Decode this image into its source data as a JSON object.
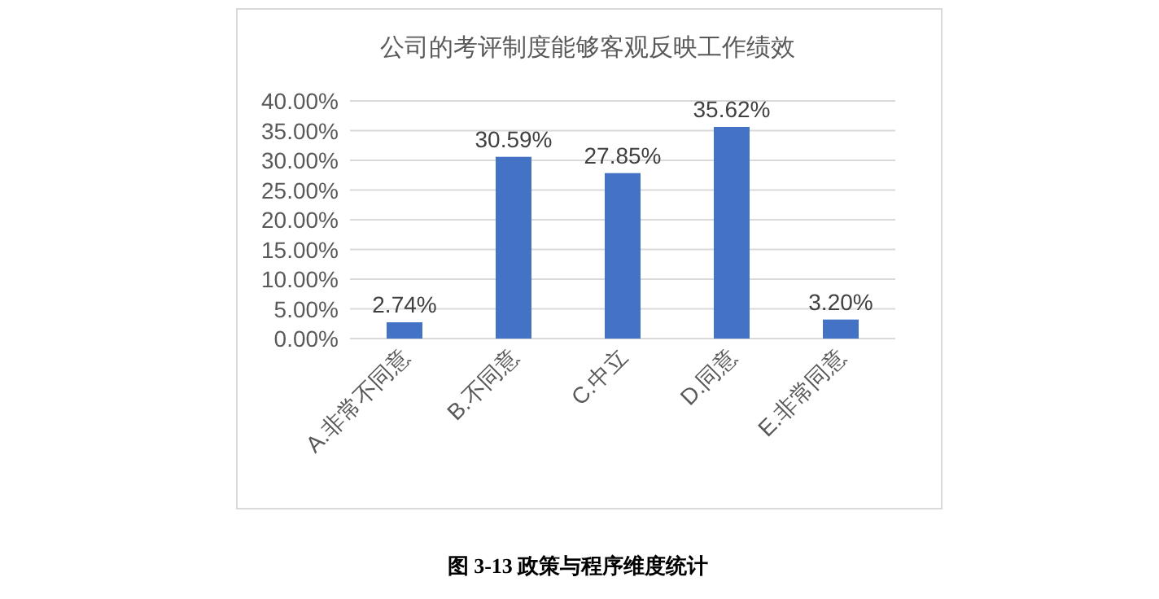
{
  "chart_data": {
    "type": "bar",
    "title": "公司的考评制度能够客观反映工作绩效",
    "categories": [
      "A.非常不同意",
      "B.不同意",
      "C.中立",
      "D.同意",
      "E.非常同意"
    ],
    "values": [
      2.74,
      30.59,
      27.85,
      35.62,
      3.2
    ],
    "value_labels": [
      "2.74%",
      "30.59%",
      "27.85%",
      "35.62%",
      "3.20%"
    ],
    "color": "#4472c4",
    "ylim": [
      0,
      40
    ],
    "yticks": [
      {
        "value": 0,
        "label": "0.00%"
      },
      {
        "value": 5,
        "label": "5.00%"
      },
      {
        "value": 10,
        "label": "10.00%"
      },
      {
        "value": 15,
        "label": "15.00%"
      },
      {
        "value": 20,
        "label": "20.00%"
      },
      {
        "value": 25,
        "label": "25.00%"
      },
      {
        "value": 30,
        "label": "30.00%"
      },
      {
        "value": 35,
        "label": "35.00%"
      },
      {
        "value": 40,
        "label": "40.00%"
      }
    ],
    "grid": "y",
    "annotations": [
      "图 3-13  政策与程序维度统计"
    ]
  }
}
